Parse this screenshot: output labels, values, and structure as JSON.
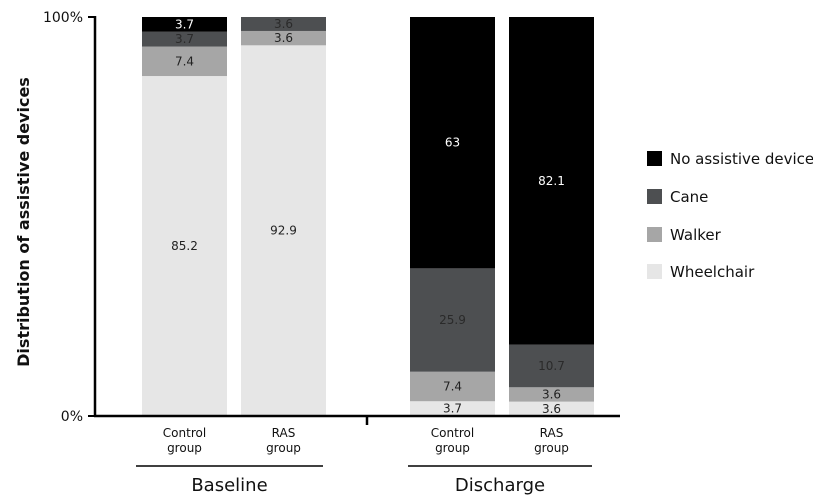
{
  "chart_data": {
    "type": "bar",
    "stacked": true,
    "percent": true,
    "ylabel": "Distribution of assistive devices",
    "yticks": [
      "0%",
      "100%"
    ],
    "ylim": [
      0,
      100
    ],
    "groups": [
      {
        "label": "Baseline",
        "categories": [
          "Control group",
          "RAS group"
        ]
      },
      {
        "label": "Discharge",
        "categories": [
          "Control group",
          "RAS group"
        ]
      }
    ],
    "bars": [
      {
        "group": "Baseline",
        "category": "Control group",
        "values": {
          "Wheelchair": 85.2,
          "Walker": 7.4,
          "Cane": 3.7,
          "No assistive device": 3.7
        },
        "labels": {
          "Wheelchair": "85.2",
          "Walker": "7.4",
          "Cane": "3.7",
          "No assistive device": "3.7"
        }
      },
      {
        "group": "Baseline",
        "category": "RAS group",
        "values": {
          "Wheelchair": 92.9,
          "Walker": 3.6,
          "Cane": 3.6,
          "No assistive device": 0
        },
        "labels": {
          "Wheelchair": "92.9",
          "Walker": "3.6",
          "Cane": "3.6",
          "No assistive device": ""
        }
      },
      {
        "group": "Discharge",
        "category": "Control group",
        "values": {
          "Wheelchair": 3.7,
          "Walker": 7.4,
          "Cane": 25.9,
          "No assistive device": 63
        },
        "labels": {
          "Wheelchair": "3.7",
          "Walker": "7.4",
          "Cane": "25.9",
          "No assistive device": "63"
        }
      },
      {
        "group": "Discharge",
        "category": "RAS group",
        "values": {
          "Wheelchair": 3.6,
          "Walker": 3.6,
          "Cane": 10.7,
          "No assistive device": 82.1
        },
        "labels": {
          "Wheelchair": "3.6",
          "Walker": "3.6",
          "Cane": "10.7",
          "No assistive device": "82.1"
        }
      }
    ],
    "series": [
      {
        "name": "Wheelchair",
        "color": "#e6e6e6",
        "text_color": "#222222"
      },
      {
        "name": "Walker",
        "color": "#a6a6a6",
        "text_color": "#222222"
      },
      {
        "name": "Cane",
        "color": "#4d4f51",
        "text_color": "#2a2a2a"
      },
      {
        "name": "No assistive device",
        "color": "#000000",
        "text_color": "#ffffff"
      }
    ],
    "legend_order": [
      "No assistive device",
      "Cane",
      "Walker",
      "Wheelchair"
    ],
    "legend_position": "right",
    "grid": false
  }
}
